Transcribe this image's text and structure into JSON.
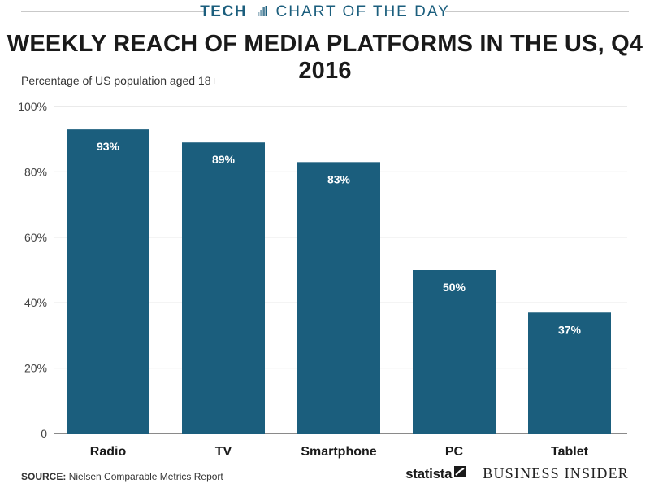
{
  "header": {
    "section": "TECH",
    "series": "CHART OF THE DAY",
    "accent_color": "#1b5e7d"
  },
  "title": "WEEKLY REACH OF MEDIA PLATFORMS IN THE US, Q4 2016",
  "subtitle": "Percentage of US population aged 18+",
  "footer": {
    "source_label": "SOURCE:",
    "source_text": "Nielsen Comparable Metrics Report",
    "brand_statista": "statista",
    "brand_bi": "BUSINESS INSIDER"
  },
  "chart_data": {
    "type": "bar",
    "title": "WEEKLY REACH OF MEDIA PLATFORMS IN THE US, Q4 2016",
    "ylabel": "Percentage of US population aged 18+",
    "xlabel": "",
    "categories": [
      "Radio",
      "TV",
      "Smartphone",
      "PC",
      "Tablet"
    ],
    "values": [
      93,
      89,
      83,
      50,
      37
    ],
    "value_labels": [
      "93%",
      "89%",
      "83%",
      "50%",
      "37%"
    ],
    "ylim": [
      0,
      100
    ],
    "yticks": [
      0,
      20,
      40,
      60,
      80,
      100
    ],
    "ytick_labels": [
      "0",
      "20%",
      "40%",
      "60%",
      "80%",
      "100%"
    ],
    "grid": true,
    "legend": "none",
    "bar_color": "#1b5e7d"
  }
}
